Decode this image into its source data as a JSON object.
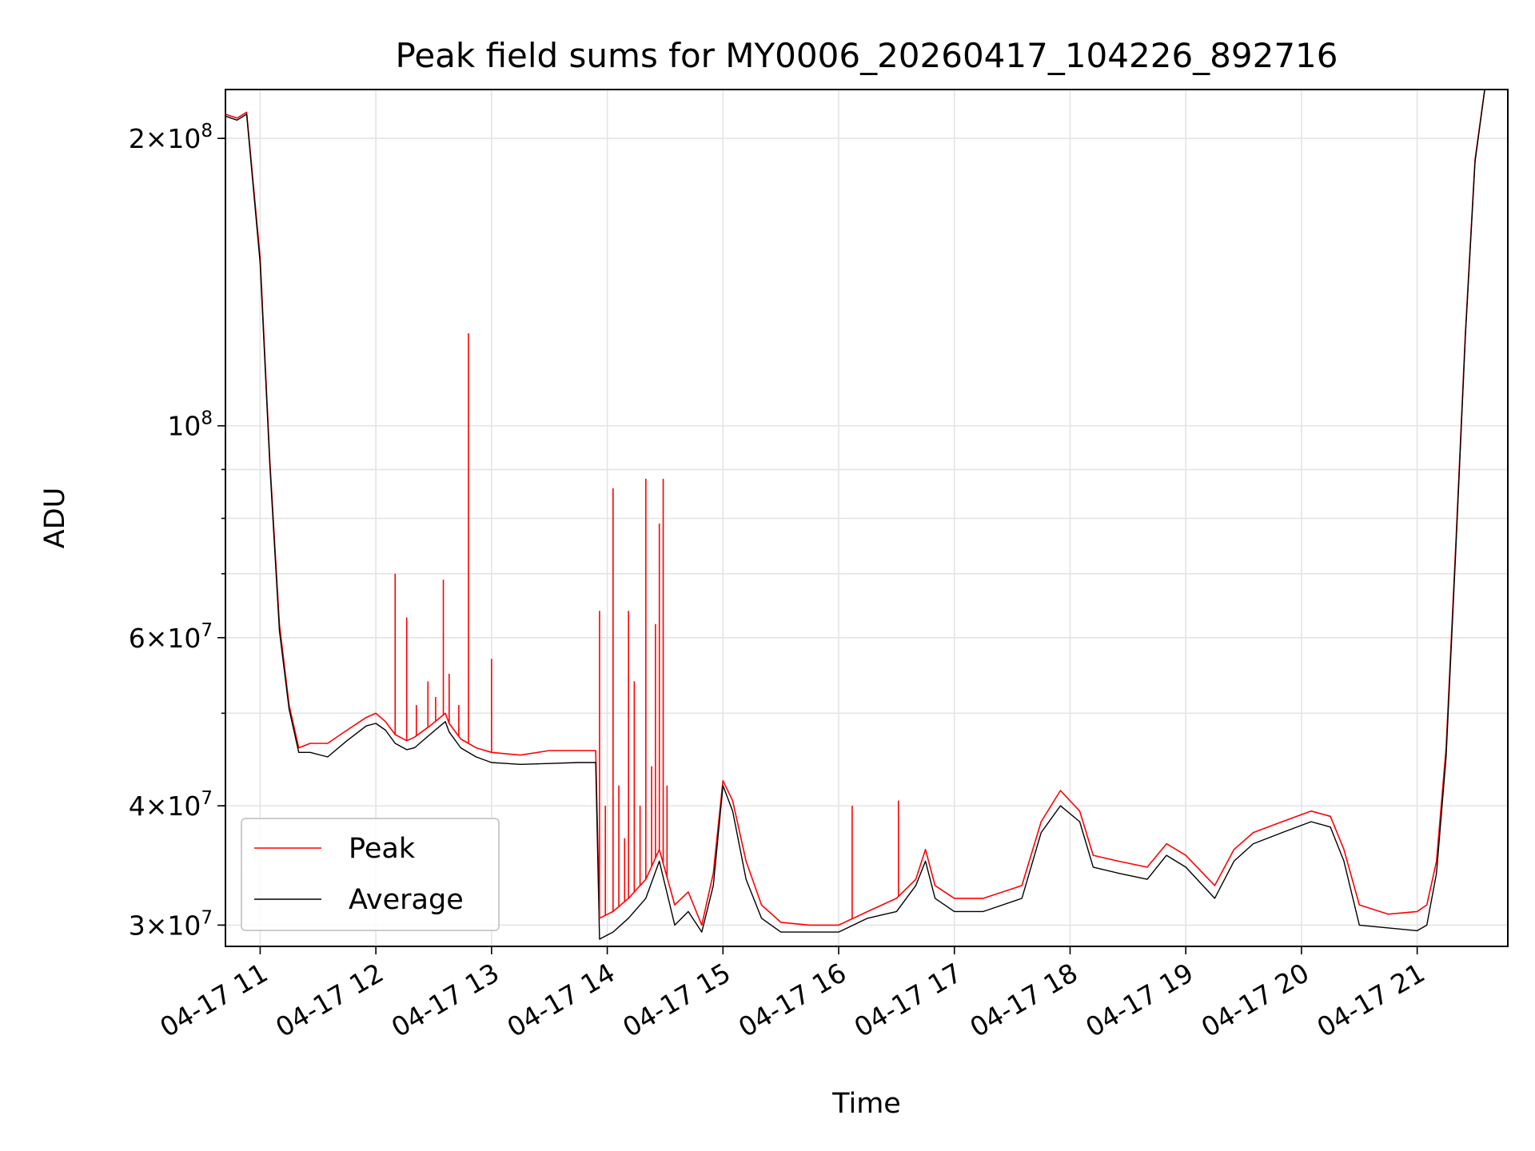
{
  "chart_data": {
    "type": "line",
    "title": "Peak field sums for MY0006_20260417_104226_892716",
    "xlabel": "Time",
    "ylabel": "ADU",
    "yscale": "log",
    "ylim": [
      28500000,
      225000000
    ],
    "xlim": [
      "2026-04-17 10:42",
      "2026-04-17 21:47"
    ],
    "grid": true,
    "legend_position": "lower-left",
    "x_tick_labels": [
      "04-17 11",
      "04-17 12",
      "04-17 13",
      "04-17 14",
      "04-17 15",
      "04-17 16",
      "04-17 17",
      "04-17 18",
      "04-17 19",
      "04-17 20",
      "04-17 21"
    ],
    "y_tick_labels": [
      {
        "value": 30000000,
        "mantissa": "3",
        "exponent": "7"
      },
      {
        "value": 40000000,
        "mantissa": "4",
        "exponent": "7"
      },
      {
        "value": 60000000,
        "mantissa": "6",
        "exponent": "7"
      },
      {
        "value": 100000000,
        "mantissa": "",
        "exponent": "8"
      },
      {
        "value": 200000000,
        "mantissa": "2",
        "exponent": "8"
      }
    ],
    "series": [
      {
        "name": "Peak",
        "color": "#ff0000",
        "x": [
          "2026-04-17 10:42",
          "2026-04-17 10:48",
          "2026-04-17 10:53",
          "2026-04-17 11:00",
          "2026-04-17 11:05",
          "2026-04-17 11:10",
          "2026-04-17 11:15",
          "2026-04-17 11:20",
          "2026-04-17 11:26",
          "2026-04-17 11:35",
          "2026-04-17 11:45",
          "2026-04-17 11:55",
          "2026-04-17 12:00",
          "2026-04-17 12:05",
          "2026-04-17 12:10",
          "2026-04-17 12:16",
          "2026-04-17 12:20",
          "2026-04-17 12:28",
          "2026-04-17 12:36",
          "2026-04-17 12:38",
          "2026-04-17 12:44",
          "2026-04-17 12:52",
          "2026-04-17 13:00",
          "2026-04-17 13:15",
          "2026-04-17 13:30",
          "2026-04-17 13:45",
          "2026-04-17 13:54",
          "2026-04-17 13:56",
          "2026-04-17 14:03",
          "2026-04-17 14:11",
          "2026-04-17 14:20",
          "2026-04-17 14:27",
          "2026-04-17 14:35",
          "2026-04-17 14:42",
          "2026-04-17 14:49",
          "2026-04-17 14:55",
          "2026-04-17 15:00",
          "2026-04-17 15:05",
          "2026-04-17 15:12",
          "2026-04-17 15:20",
          "2026-04-17 15:30",
          "2026-04-17 15:45",
          "2026-04-17 16:00",
          "2026-04-17 16:15",
          "2026-04-17 16:30",
          "2026-04-17 16:40",
          "2026-04-17 16:45",
          "2026-04-17 16:50",
          "2026-04-17 17:00",
          "2026-04-17 17:15",
          "2026-04-17 17:35",
          "2026-04-17 17:45",
          "2026-04-17 17:55",
          "2026-04-17 18:05",
          "2026-04-17 18:12",
          "2026-04-17 18:25",
          "2026-04-17 18:40",
          "2026-04-17 18:50",
          "2026-04-17 19:00",
          "2026-04-17 19:15",
          "2026-04-17 19:25",
          "2026-04-17 19:35",
          "2026-04-17 19:50",
          "2026-04-17 20:05",
          "2026-04-17 20:15",
          "2026-04-17 20:22",
          "2026-04-17 20:30",
          "2026-04-17 20:45",
          "2026-04-17 21:00",
          "2026-04-17 21:05",
          "2026-04-17 21:10",
          "2026-04-17 21:15",
          "2026-04-17 21:20",
          "2026-04-17 21:25",
          "2026-04-17 21:30",
          "2026-04-17 21:35",
          "2026-04-17 21:40",
          "2026-04-17 21:44",
          "2026-04-17 21:47"
        ],
        "values": [
          212000000,
          210000000,
          213000000,
          150000000,
          92000000,
          62000000,
          51000000,
          46000000,
          46500000,
          46500000,
          48000000,
          49500000,
          50000000,
          49000000,
          47500000,
          46800000,
          47200000,
          48500000,
          50000000,
          48800000,
          47000000,
          46000000,
          45500000,
          45200000,
          45700000,
          45700000,
          45700000,
          30500000,
          31000000,
          32000000,
          33500000,
          36000000,
          31500000,
          32500000,
          30000000,
          34000000,
          42500000,
          40500000,
          35000000,
          31500000,
          30200000,
          30000000,
          30000000,
          31000000,
          32000000,
          33500000,
          36000000,
          33000000,
          32000000,
          32000000,
          33000000,
          38500000,
          41500000,
          39500000,
          35500000,
          35000000,
          34500000,
          36500000,
          35500000,
          33000000,
          36000000,
          37500000,
          38500000,
          39500000,
          39000000,
          36000000,
          31500000,
          30800000,
          31000000,
          31500000,
          35000000,
          46000000,
          75000000,
          125000000,
          190000000,
          225000000,
          225000000,
          225000000,
          225000000
        ]
      },
      {
        "name": "Average",
        "color": "#000000",
        "x": [
          "2026-04-17 10:42",
          "2026-04-17 10:48",
          "2026-04-17 10:53",
          "2026-04-17 11:00",
          "2026-04-17 11:05",
          "2026-04-17 11:10",
          "2026-04-17 11:15",
          "2026-04-17 11:20",
          "2026-04-17 11:26",
          "2026-04-17 11:35",
          "2026-04-17 11:45",
          "2026-04-17 11:55",
          "2026-04-17 12:00",
          "2026-04-17 12:05",
          "2026-04-17 12:10",
          "2026-04-17 12:16",
          "2026-04-17 12:20",
          "2026-04-17 12:28",
          "2026-04-17 12:36",
          "2026-04-17 12:38",
          "2026-04-17 12:44",
          "2026-04-17 12:52",
          "2026-04-17 13:00",
          "2026-04-17 13:15",
          "2026-04-17 13:30",
          "2026-04-17 13:45",
          "2026-04-17 13:54",
          "2026-04-17 13:56",
          "2026-04-17 14:03",
          "2026-04-17 14:11",
          "2026-04-17 14:20",
          "2026-04-17 14:27",
          "2026-04-17 14:35",
          "2026-04-17 14:42",
          "2026-04-17 14:49",
          "2026-04-17 14:55",
          "2026-04-17 15:00",
          "2026-04-17 15:05",
          "2026-04-17 15:12",
          "2026-04-17 15:20",
          "2026-04-17 15:30",
          "2026-04-17 15:45",
          "2026-04-17 16:00",
          "2026-04-17 16:15",
          "2026-04-17 16:30",
          "2026-04-17 16:40",
          "2026-04-17 16:45",
          "2026-04-17 16:50",
          "2026-04-17 17:00",
          "2026-04-17 17:15",
          "2026-04-17 17:35",
          "2026-04-17 17:45",
          "2026-04-17 17:55",
          "2026-04-17 18:05",
          "2026-04-17 18:12",
          "2026-04-17 18:25",
          "2026-04-17 18:40",
          "2026-04-17 18:50",
          "2026-04-17 19:00",
          "2026-04-17 19:15",
          "2026-04-17 19:25",
          "2026-04-17 19:35",
          "2026-04-17 19:50",
          "2026-04-17 20:05",
          "2026-04-17 20:15",
          "2026-04-17 20:22",
          "2026-04-17 20:30",
          "2026-04-17 20:45",
          "2026-04-17 21:00",
          "2026-04-17 21:05",
          "2026-04-17 21:10",
          "2026-04-17 21:15",
          "2026-04-17 21:20",
          "2026-04-17 21:25",
          "2026-04-17 21:30",
          "2026-04-17 21:35",
          "2026-04-17 21:40",
          "2026-04-17 21:44",
          "2026-04-17 21:47"
        ],
        "values": [
          211000000,
          209000000,
          212000000,
          148000000,
          91000000,
          61000000,
          50500000,
          45500000,
          45500000,
          45000000,
          46800000,
          48500000,
          48800000,
          48000000,
          46500000,
          45800000,
          46000000,
          47500000,
          49000000,
          47800000,
          46000000,
          45000000,
          44400000,
          44200000,
          44300000,
          44400000,
          44400000,
          29000000,
          29500000,
          30500000,
          32000000,
          35000000,
          30000000,
          31000000,
          29500000,
          33000000,
          42000000,
          39500000,
          33500000,
          30500000,
          29500000,
          29500000,
          29500000,
          30500000,
          31000000,
          33000000,
          35000000,
          32000000,
          31000000,
          31000000,
          32000000,
          37500000,
          40000000,
          38500000,
          34500000,
          34000000,
          33500000,
          35500000,
          34500000,
          32000000,
          35000000,
          36500000,
          37500000,
          38500000,
          38000000,
          35000000,
          30000000,
          29800000,
          29600000,
          30000000,
          34000000,
          45000000,
          74000000,
          124000000,
          189000000,
          225000000,
          225000000,
          225000000,
          225000000
        ]
      }
    ],
    "peak_spikes": [
      {
        "x": "2026-04-17 12:10",
        "value": 70000000
      },
      {
        "x": "2026-04-17 12:16",
        "value": 63000000
      },
      {
        "x": "2026-04-17 12:21",
        "value": 51000000
      },
      {
        "x": "2026-04-17 12:27",
        "value": 54000000
      },
      {
        "x": "2026-04-17 12:31",
        "value": 52000000
      },
      {
        "x": "2026-04-17 12:35",
        "value": 69000000
      },
      {
        "x": "2026-04-17 12:38",
        "value": 55000000
      },
      {
        "x": "2026-04-17 12:43",
        "value": 51000000
      },
      {
        "x": "2026-04-17 12:48",
        "value": 125000000
      },
      {
        "x": "2026-04-17 13:00",
        "value": 57000000
      },
      {
        "x": "2026-04-17 13:56",
        "value": 64000000
      },
      {
        "x": "2026-04-17 13:59",
        "value": 40000000
      },
      {
        "x": "2026-04-17 14:03",
        "value": 86000000
      },
      {
        "x": "2026-04-17 14:06",
        "value": 42000000
      },
      {
        "x": "2026-04-17 14:09",
        "value": 37000000
      },
      {
        "x": "2026-04-17 14:11",
        "value": 64000000
      },
      {
        "x": "2026-04-17 14:14",
        "value": 54000000
      },
      {
        "x": "2026-04-17 14:17",
        "value": 40000000
      },
      {
        "x": "2026-04-17 14:20",
        "value": 88000000
      },
      {
        "x": "2026-04-17 14:23",
        "value": 44000000
      },
      {
        "x": "2026-04-17 14:25",
        "value": 62000000
      },
      {
        "x": "2026-04-17 14:27",
        "value": 79000000
      },
      {
        "x": "2026-04-17 14:29",
        "value": 88000000
      },
      {
        "x": "2026-04-17 14:31",
        "value": 42000000
      },
      {
        "x": "2026-04-17 16:07",
        "value": 40000000
      },
      {
        "x": "2026-04-17 16:31",
        "value": 40500000
      }
    ]
  }
}
